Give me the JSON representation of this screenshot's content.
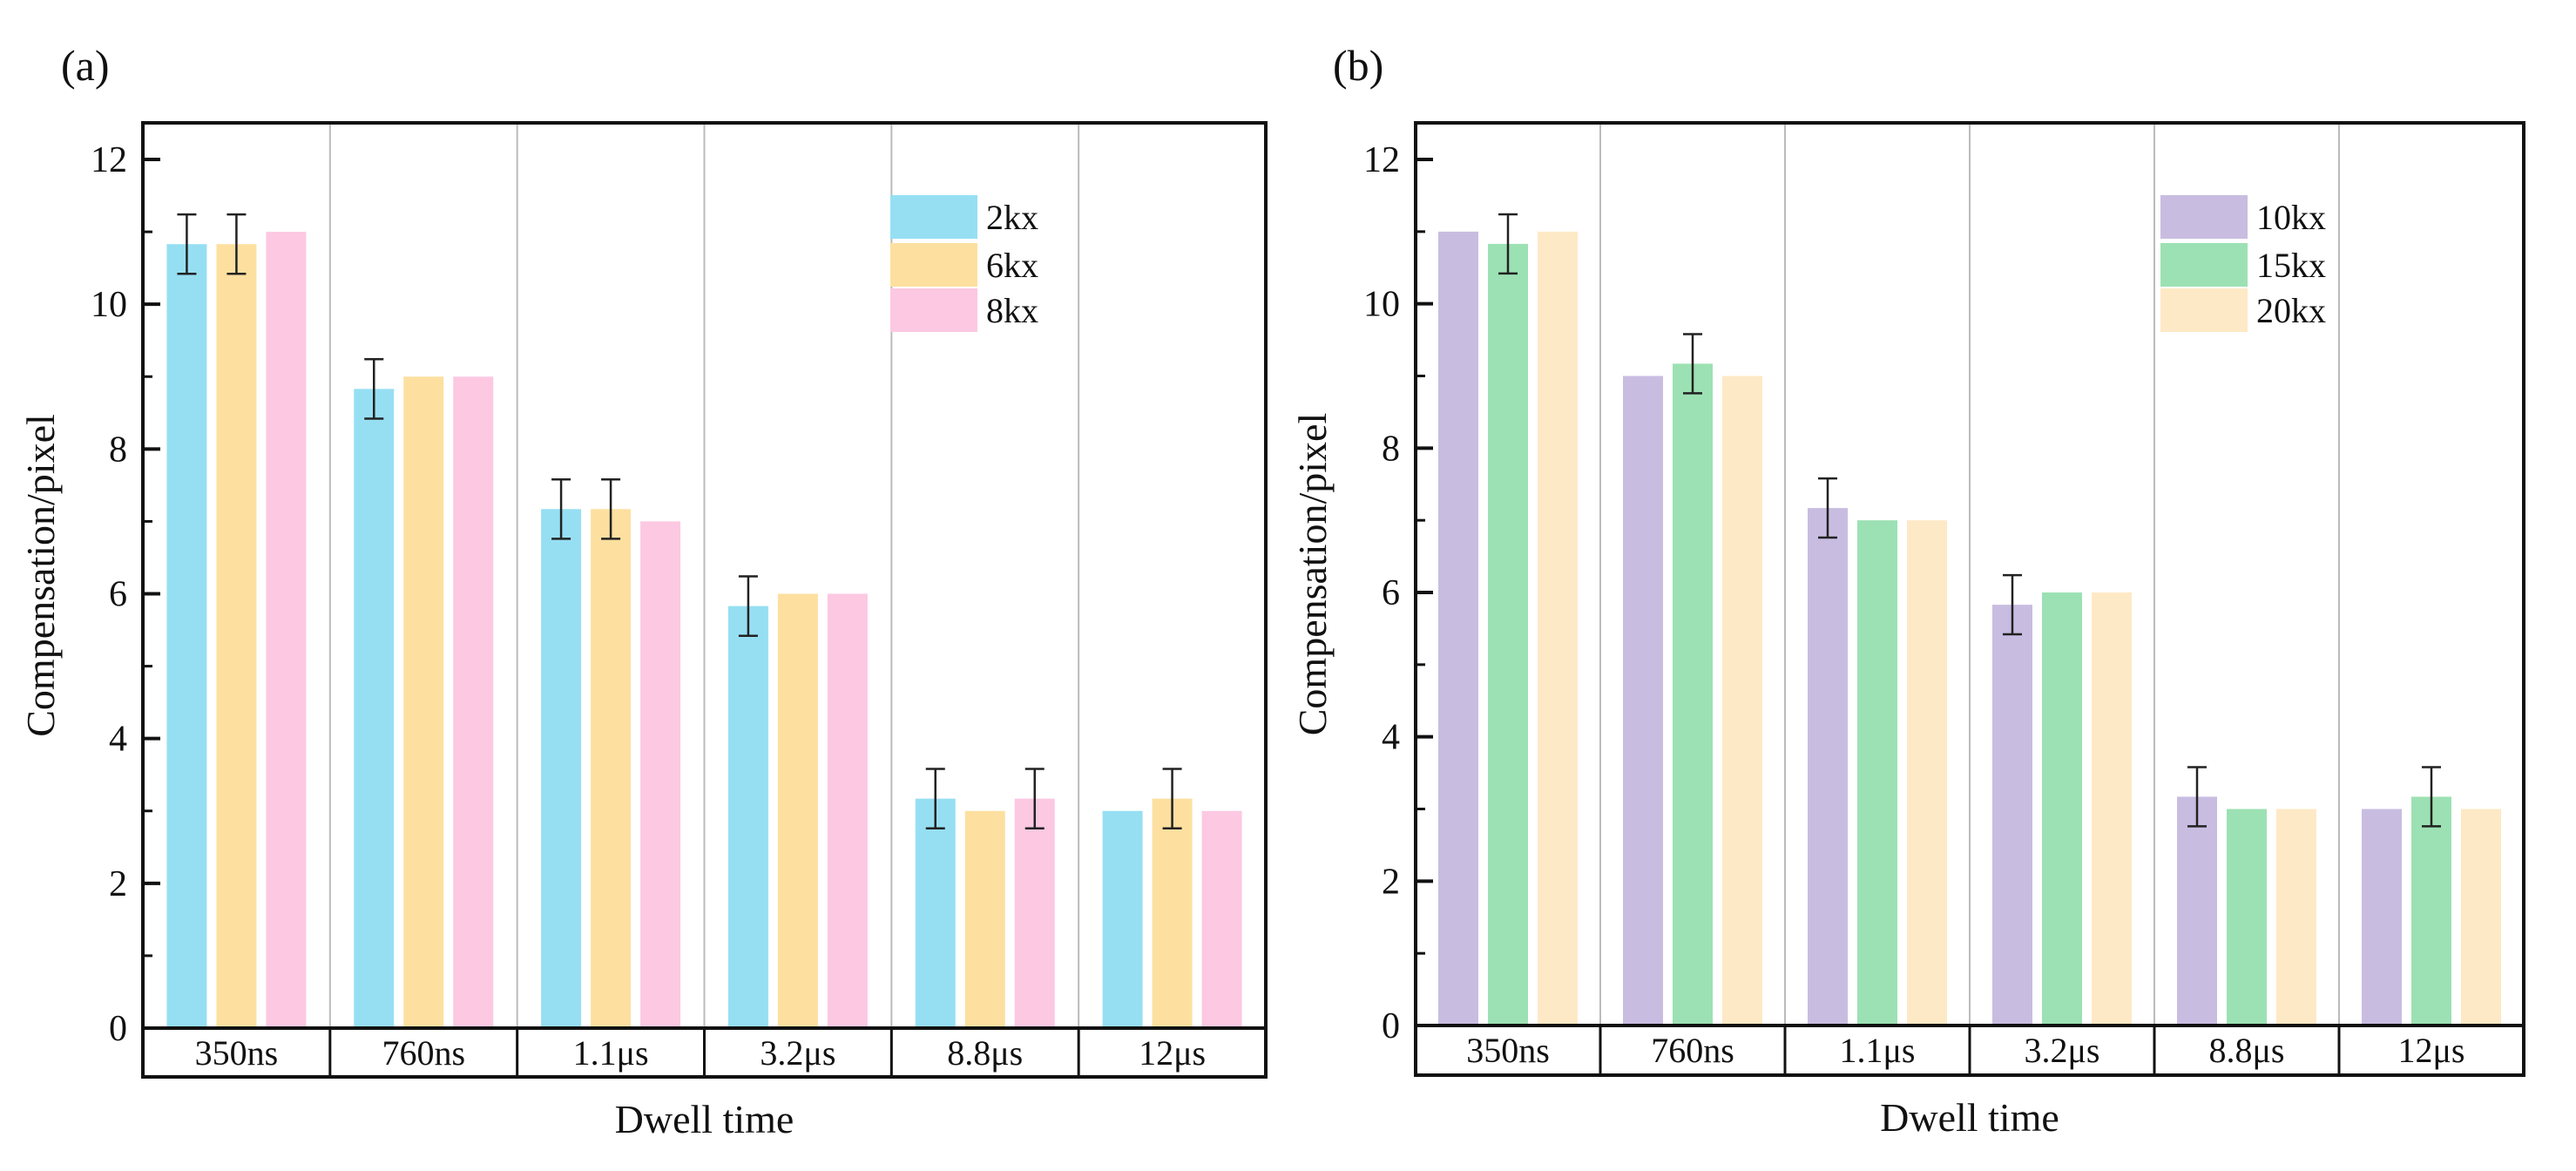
{
  "colors": {
    "2kx": "#96dff3",
    "6kx": "#fde0a0",
    "8kx": "#fcc8e2",
    "10kx": "#c8bde1",
    "15kx": "#9ce1b3",
    "20kx": "#fee9c6",
    "axis": "#111111",
    "divider": "#bbbbbb"
  },
  "chart_data": [
    {
      "type": "bar",
      "panel_label": "(a)",
      "xlabel": "Dwell time",
      "ylabel": "Compensation/pixel",
      "ylim": [
        0,
        12.5
      ],
      "yticks": [
        "0",
        "2",
        "4",
        "6",
        "8",
        "10",
        "12"
      ],
      "categories": [
        "350ns",
        "760ns",
        "1.1μs",
        "3.2μs",
        "8.8μs",
        "12μs"
      ],
      "legend_position": "top-right",
      "series": [
        {
          "name": "2kx",
          "values": [
            10.83,
            8.83,
            7.17,
            5.83,
            3.17,
            3
          ],
          "errors": [
            0.41,
            0.41,
            0.41,
            0.41,
            0.41,
            0
          ]
        },
        {
          "name": "6kx",
          "values": [
            10.83,
            9,
            7.17,
            6,
            3,
            3.17
          ],
          "errors": [
            0.41,
            0,
            0.41,
            0,
            0,
            0.41
          ]
        },
        {
          "name": "8kx",
          "values": [
            11,
            9,
            7,
            6,
            3.17,
            3
          ],
          "errors": [
            0,
            0,
            0,
            0,
            0.41,
            0
          ]
        }
      ]
    },
    {
      "type": "bar",
      "panel_label": "(b)",
      "xlabel": "Dwell time",
      "ylabel": "Compensation/pixel",
      "ylim": [
        0,
        12.5
      ],
      "yticks": [
        "0",
        "2",
        "4",
        "6",
        "8",
        "10",
        "12"
      ],
      "categories": [
        "350ns",
        "760ns",
        "1.1μs",
        "3.2μs",
        "8.8μs",
        "12μs"
      ],
      "legend_position": "top-right",
      "series": [
        {
          "name": "10kx",
          "values": [
            11,
            9,
            7.17,
            5.83,
            3.17,
            3
          ],
          "errors": [
            0,
            0,
            0.41,
            0.41,
            0.41,
            0
          ]
        },
        {
          "name": "15kx",
          "values": [
            10.83,
            9.17,
            7,
            6,
            3,
            3.17
          ],
          "errors": [
            0.41,
            0.41,
            0,
            0,
            0,
            0.41
          ]
        },
        {
          "name": "20kx",
          "values": [
            11,
            9,
            7,
            6,
            3,
            3
          ],
          "errors": [
            0,
            0,
            0,
            0,
            0,
            0
          ]
        }
      ]
    }
  ]
}
